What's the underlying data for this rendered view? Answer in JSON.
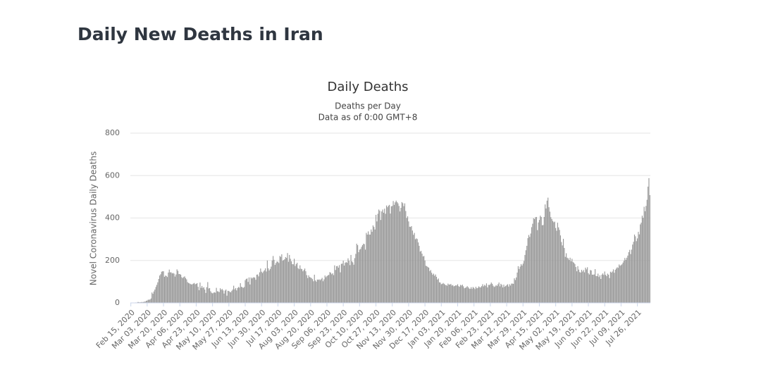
{
  "heading": "Daily New Deaths in Iran",
  "chart_data": {
    "type": "bar",
    "title": "Daily Deaths",
    "subtitle": [
      "Deaths per Day",
      "Data as of 0:00 GMT+8"
    ],
    "ylabel": "Novel Coronavirus Daily Deaths",
    "color": "#999999",
    "ylim": [
      0,
      800
    ],
    "yticks": [
      0,
      200,
      400,
      600,
      800
    ],
    "grid": true,
    "categories": [
      "Feb 15, 2020",
      null,
      null,
      null,
      null,
      null,
      null,
      null,
      null,
      null,
      null,
      null,
      null,
      null,
      null,
      null,
      null,
      "Mar 03, 2020",
      null,
      null,
      null,
      null,
      null,
      null,
      null,
      null,
      null,
      null,
      null,
      null,
      null,
      null,
      null,
      null,
      "Mar 20, 2020",
      null,
      null,
      null,
      null,
      null,
      null,
      null,
      null,
      null,
      null,
      null,
      null,
      null,
      null,
      null,
      null,
      "Apr 06, 2020",
      null,
      null,
      null,
      null,
      null,
      null,
      null,
      null,
      null,
      null,
      null,
      null,
      null,
      null,
      null,
      null,
      "Apr 23, 2020",
      null,
      null,
      null,
      null,
      null,
      null,
      null,
      null,
      null,
      null,
      null,
      null,
      null,
      null,
      null,
      null,
      "May 10, 2020",
      null,
      null,
      null,
      null,
      null,
      null,
      null,
      null,
      null,
      null,
      null,
      null,
      null,
      null,
      null,
      null,
      "May 27, 2020",
      null,
      null,
      null,
      null,
      null,
      null,
      null,
      null,
      null,
      null,
      null,
      null,
      null,
      null,
      null,
      null,
      "Jun 13, 2020",
      null,
      null,
      null,
      null,
      null,
      null,
      null,
      null,
      null,
      null,
      null,
      null,
      null,
      null,
      null,
      null,
      "Jun 30, 2020",
      null,
      null,
      null,
      null,
      null,
      null,
      null,
      null,
      null,
      null,
      null,
      null,
      null,
      null,
      null,
      null,
      "Jul 17, 2020",
      null,
      null,
      null,
      null,
      null,
      null,
      null,
      null,
      null,
      null,
      null,
      null,
      null,
      null,
      null,
      null,
      "Aug 03, 2020",
      null,
      null,
      null,
      null,
      null,
      null,
      null,
      null,
      null,
      null,
      null,
      null,
      null,
      null,
      null,
      null,
      "Aug 20, 2020",
      null,
      null,
      null,
      null,
      null,
      null,
      null,
      null,
      null,
      null,
      null,
      null,
      null,
      null,
      null,
      null,
      "Sep 06, 2020",
      null,
      null,
      null,
      null,
      null,
      null,
      null,
      null,
      null,
      null,
      null,
      null,
      null,
      null,
      null,
      null,
      "Sep 23, 2020",
      null,
      null,
      null,
      null,
      null,
      null,
      null,
      null,
      null,
      null,
      null,
      null,
      null,
      null,
      null,
      null,
      "Oct 10, 2020",
      null,
      null,
      null,
      null,
      null,
      null,
      null,
      null,
      null,
      null,
      null,
      null,
      null,
      null,
      null,
      null,
      "Oct 27, 2020",
      null,
      null,
      null,
      null,
      null,
      null,
      null,
      null,
      null,
      null,
      null,
      null,
      null,
      null,
      null,
      null,
      "Nov 13, 2020",
      null,
      null,
      null,
      null,
      null,
      null,
      null,
      null,
      null,
      null,
      null,
      null,
      null,
      null,
      null,
      null,
      "Nov 30, 2020",
      null,
      null,
      null,
      null,
      null,
      null,
      null,
      null,
      null,
      null,
      null,
      null,
      null,
      null,
      null,
      null,
      "Dec 17, 2020",
      null,
      null,
      null,
      null,
      null,
      null,
      null,
      null,
      null,
      null,
      null,
      null,
      null,
      null,
      null,
      null,
      "Jan 03, 2021",
      null,
      null,
      null,
      null,
      null,
      null,
      null,
      null,
      null,
      null,
      null,
      null,
      null,
      null,
      null,
      null,
      "Jan 20, 2021",
      null,
      null,
      null,
      null,
      null,
      null,
      null,
      null,
      null,
      null,
      null,
      null,
      null,
      null,
      null,
      null,
      "Feb 06, 2021",
      null,
      null,
      null,
      null,
      null,
      null,
      null,
      null,
      null,
      null,
      null,
      null,
      null,
      null,
      null,
      null,
      "Feb 23, 2021",
      null,
      null,
      null,
      null,
      null,
      null,
      null,
      null,
      null,
      null,
      null,
      null,
      null,
      null,
      null,
      null,
      "Mar 12, 2021",
      null,
      null,
      null,
      null,
      null,
      null,
      null,
      null,
      null,
      null,
      null,
      null,
      null,
      null,
      null,
      null,
      "Mar 29, 2021",
      null,
      null,
      null,
      null,
      null,
      null,
      null,
      null,
      null,
      null,
      null,
      null,
      null,
      null,
      null,
      null,
      "Apr 15, 2021",
      null,
      null,
      null,
      null,
      null,
      null,
      null,
      null,
      null,
      null,
      null,
      null,
      null,
      null,
      null,
      null,
      "May 02, 2021",
      null,
      null,
      null,
      null,
      null,
      null,
      null,
      null,
      null,
      null,
      null,
      null,
      null,
      null,
      null,
      null,
      "May 19, 2021",
      null,
      null,
      null,
      null,
      null,
      null,
      null,
      null,
      null,
      null,
      null,
      null,
      null,
      null,
      null,
      null,
      "Jun 05, 2021",
      null,
      null,
      null,
      null,
      null,
      null,
      null,
      null,
      null,
      null,
      null,
      null,
      null,
      null,
      null,
      null,
      "Jun 22, 2021",
      null,
      null,
      null,
      null,
      null,
      null,
      null,
      null,
      null,
      null,
      null,
      null,
      null,
      null,
      null,
      null,
      "Jul 09, 2021",
      null,
      null,
      null,
      null,
      null,
      null,
      null,
      null,
      null,
      null,
      null,
      null,
      null,
      null,
      null,
      null,
      "Jul 26, 2021",
      null,
      null,
      null,
      null,
      null,
      null,
      null,
      null,
      null,
      null,
      null,
      null,
      null
    ],
    "values": [
      0,
      0,
      0,
      0,
      0,
      2,
      0,
      4,
      4,
      3,
      3,
      4,
      4,
      4,
      6,
      6,
      10,
      11,
      15,
      15,
      16,
      21,
      49,
      43,
      54,
      63,
      75,
      85,
      97,
      113,
      129,
      135,
      147,
      149,
      149,
      123,
      129,
      127,
      122,
      143,
      157,
      144,
      144,
      139,
      141,
      138,
      124,
      134,
      158,
      151,
      136,
      136,
      133,
      121,
      117,
      122,
      125,
      117,
      111,
      98,
      94,
      92,
      89,
      87,
      88,
      91,
      94,
      88,
      90,
      93,
      76,
      60,
      96,
      71,
      80,
      71,
      74,
      63,
      47,
      74,
      98,
      68,
      70,
      55,
      48,
      45,
      48,
      50,
      48,
      71,
      55,
      54,
      51,
      69,
      62,
      66,
      59,
      44,
      58,
      63,
      34,
      57,
      56,
      52,
      50,
      57,
      63,
      81,
      64,
      70,
      59,
      70,
      75,
      72,
      93,
      76,
      74,
      71,
      75,
      107,
      113,
      115,
      99,
      120,
      87,
      120,
      115,
      119,
      121,
      119,
      109,
      133,
      134,
      125,
      144,
      162,
      147,
      141,
      148,
      154,
      163,
      148,
      200,
      163,
      153,
      160,
      171,
      200,
      221,
      203,
      179,
      188,
      195,
      194,
      188,
      221,
      217,
      229,
      199,
      202,
      206,
      216,
      212,
      235,
      194,
      226,
      208,
      196,
      183,
      182,
      208,
      174,
      183,
      189,
      164,
      159,
      177,
      161,
      159,
      149,
      155,
      162,
      149,
      131,
      117,
      130,
      122,
      120,
      117,
      112,
      102,
      133,
      106,
      100,
      110,
      109,
      111,
      107,
      112,
      118,
      102,
      111,
      129,
      121,
      126,
      130,
      132,
      145,
      142,
      135,
      140,
      131,
      177,
      155,
      173,
      174,
      166,
      178,
      144,
      184,
      185,
      199,
      176,
      189,
      193,
      189,
      210,
      199,
      178,
      226,
      196,
      191,
      180,
      211,
      231,
      279,
      272,
      239,
      251,
      254,
      264,
      272,
      279,
      277,
      251,
      330,
      322,
      337,
      322,
      322,
      346,
      335,
      365,
      358,
      346,
      415,
      384,
      420,
      440,
      434,
      391,
      431,
      440,
      425,
      444,
      420,
      459,
      451,
      458,
      462,
      421,
      455,
      457,
      480,
      462,
      474,
      482,
      475,
      469,
      457,
      431,
      448,
      475,
      470,
      456,
      469,
      433,
      400,
      408,
      384,
      359,
      358,
      362,
      341,
      321,
      330,
      300,
      304,
      301,
      285,
      269,
      242,
      245,
      232,
      219,
      221,
      200,
      175,
      173,
      169,
      166,
      150,
      155,
      142,
      133,
      138,
      128,
      134,
      123,
      110,
      115,
      97,
      96,
      88,
      90,
      94,
      90,
      85,
      84,
      81,
      91,
      86,
      87,
      89,
      82,
      84,
      78,
      80,
      83,
      82,
      88,
      79,
      76,
      85,
      82,
      86,
      78,
      69,
      71,
      74,
      79,
      74,
      68,
      66,
      74,
      66,
      75,
      71,
      65,
      76,
      69,
      71,
      78,
      74,
      73,
      79,
      88,
      78,
      85,
      81,
      92,
      73,
      85,
      84,
      88,
      96,
      90,
      81,
      75,
      78,
      84,
      80,
      88,
      96,
      78,
      90,
      85,
      73,
      86,
      76,
      80,
      84,
      88,
      77,
      88,
      82,
      91,
      91,
      90,
      116,
      108,
      120,
      143,
      173,
      160,
      171,
      183,
      176,
      185,
      198,
      226,
      248,
      269,
      305,
      320,
      311,
      327,
      357,
      373,
      399,
      395,
      404,
      405,
      343,
      379,
      391,
      411,
      405,
      366,
      367,
      405,
      464,
      445,
      482,
      496,
      451,
      430,
      404,
      395,
      386,
      380,
      383,
      353,
      340,
      378,
      356,
      344,
      318,
      287,
      271,
      302,
      259,
      217,
      234,
      213,
      210,
      202,
      213,
      196,
      208,
      193,
      189,
      183,
      169,
      149,
      173,
      157,
      145,
      143,
      156,
      148,
      155,
      144,
      166,
      158,
      168,
      140,
      134,
      155,
      153,
      133,
      133,
      134,
      159,
      127,
      126,
      138,
      122,
      130,
      113,
      133,
      139,
      132,
      148,
      132,
      126,
      138,
      133,
      117,
      147,
      143,
      148,
      158,
      142,
      156,
      162,
      168,
      165,
      181,
      175,
      178,
      182,
      190,
      199,
      212,
      203,
      213,
      223,
      239,
      250,
      230,
      251,
      275,
      288,
      322,
      314,
      291,
      304,
      335,
      323,
      370,
      378,
      411,
      401,
      453,
      432,
      457,
      486,
      548,
      588,
      508
    ]
  }
}
